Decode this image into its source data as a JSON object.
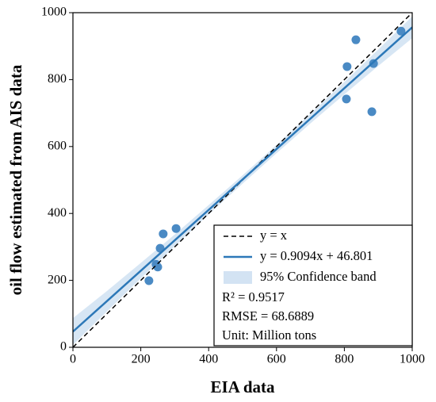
{
  "chart_data": {
    "type": "scatter",
    "xlabel": "EIA data",
    "ylabel": "oil flow estimated from AIS data",
    "xlim": [
      0,
      1000
    ],
    "ylim": [
      0,
      1000
    ],
    "xticks": [
      0,
      200,
      400,
      600,
      800,
      1000
    ],
    "yticks": [
      0,
      200,
      400,
      600,
      800,
      1000
    ],
    "grid": false,
    "legend": "lower right",
    "points": {
      "color": "#4a8ac4",
      "x": [
        224,
        245,
        250,
        257,
        266,
        304,
        806,
        808,
        834,
        886,
        881,
        967
      ],
      "y": [
        199,
        248,
        240,
        296,
        339,
        355,
        742,
        839,
        919,
        848,
        704,
        945
      ]
    },
    "series": [
      {
        "name": "y = x",
        "color": "#000000",
        "dash": true,
        "x": [
          0,
          1000
        ],
        "values": [
          0,
          1000
        ]
      },
      {
        "name": "y = 0.9094x + 46.801",
        "color": "#2c78b8",
        "dash": false,
        "x": [
          0,
          1000
        ],
        "values": [
          46.801,
          956.2
        ]
      }
    ],
    "band": {
      "name": "95% Confidence band",
      "color": "#d3e3f3",
      "x": [
        0,
        100,
        200,
        300,
        400,
        500,
        600,
        700,
        800,
        900,
        1000
      ],
      "lower": [
        7,
        107,
        206,
        302,
        397,
        489,
        580,
        669,
        756,
        841,
        924
      ],
      "upper": [
        87,
        168,
        252,
        337,
        425,
        514,
        605,
        698,
        793,
        890,
        989
      ]
    },
    "annotations": [
      "R² = 0.9517",
      "RMSE = 68.6889",
      "Unit: Million tons"
    ]
  }
}
